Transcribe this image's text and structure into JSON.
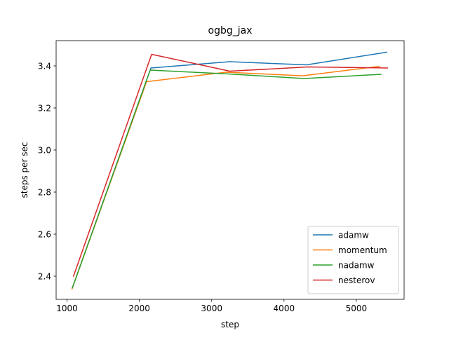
{
  "chart_data": {
    "type": "line",
    "title": "ogbg_jax",
    "xlabel": "step",
    "ylabel": "steps per sec",
    "xlim": [
      850,
      5660
    ],
    "ylim": [
      2.29,
      3.52
    ],
    "xticks": [
      {
        "value": 1000,
        "label": "1000"
      },
      {
        "value": 2000,
        "label": "2000"
      },
      {
        "value": 3000,
        "label": "3000"
      },
      {
        "value": 4000,
        "label": "4000"
      },
      {
        "value": 5000,
        "label": "5000"
      }
    ],
    "yticks": [
      {
        "value": 2.4,
        "label": "2.4"
      },
      {
        "value": 2.6,
        "label": "2.6"
      },
      {
        "value": 2.8,
        "label": "2.8"
      },
      {
        "value": 3.0,
        "label": "3.0"
      },
      {
        "value": 3.2,
        "label": "3.2"
      },
      {
        "value": 3.4,
        "label": "3.4"
      }
    ],
    "grid": false,
    "legend_position": "lower-right",
    "series": [
      {
        "name": "adamw",
        "color": "#1f77b4",
        "x": [
          1075,
          2160,
          3250,
          4310,
          5420
        ],
        "y": [
          2.345,
          3.39,
          3.42,
          3.405,
          3.465
        ]
      },
      {
        "name": "momentum",
        "color": "#ff7f0e",
        "x": [
          1070,
          2100,
          3200,
          4260,
          5320
        ],
        "y": [
          2.34,
          3.325,
          3.37,
          3.353,
          3.398
        ]
      },
      {
        "name": "nadamw",
        "color": "#2ca02c",
        "x": [
          1075,
          2150,
          3210,
          4280,
          5340
        ],
        "y": [
          2.345,
          3.38,
          3.362,
          3.34,
          3.36
        ]
      },
      {
        "name": "nesterov",
        "color": "#d62728",
        "x": [
          1090,
          2170,
          3250,
          4330,
          5430
        ],
        "y": [
          2.4,
          3.455,
          3.375,
          3.395,
          3.39
        ]
      }
    ]
  }
}
